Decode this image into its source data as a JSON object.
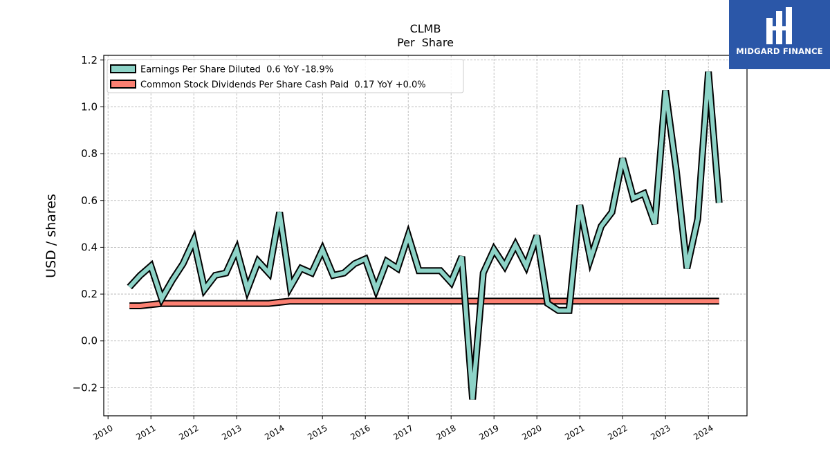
{
  "chart_data": {
    "type": "line",
    "title": "CLMB",
    "subtitle": "Per  Share",
    "xlabel": "",
    "ylabel": "USD / shares",
    "xlim": [
      2009.9,
      2024.9
    ],
    "ylim": [
      -0.32,
      1.22
    ],
    "yticks": [
      -0.2,
      0.0,
      0.2,
      0.4,
      0.6,
      0.8,
      1.0,
      1.2
    ],
    "ytick_labels": [
      "−0.2",
      "0.0",
      "0.2",
      "0.4",
      "0.6",
      "0.8",
      "1.0",
      "1.2"
    ],
    "xticks": [
      2010,
      2011,
      2012,
      2013,
      2014,
      2015,
      2016,
      2017,
      2018,
      2019,
      2020,
      2021,
      2022,
      2023,
      2024
    ],
    "xtick_labels": [
      "2010",
      "2011",
      "2012",
      "2013",
      "2014",
      "2015",
      "2016",
      "2017",
      "2018",
      "2019",
      "2020",
      "2021",
      "2022",
      "2023",
      "2024"
    ],
    "grid": true,
    "legend_position": "top-left",
    "series": [
      {
        "name": "Earnings Per Share Diluted  0.6 YoY -18.9%",
        "color": "#8dd3c7",
        "x": [
          2010.5,
          2010.75,
          2011.0,
          2011.25,
          2011.5,
          2011.75,
          2012.0,
          2012.25,
          2012.5,
          2012.75,
          2013.0,
          2013.25,
          2013.5,
          2013.75,
          2014.0,
          2014.25,
          2014.5,
          2014.75,
          2015.0,
          2015.25,
          2015.5,
          2015.75,
          2016.0,
          2016.25,
          2016.5,
          2016.75,
          2017.0,
          2017.25,
          2017.5,
          2017.75,
          2018.0,
          2018.25,
          2018.5,
          2018.75,
          2019.0,
          2019.25,
          2019.5,
          2019.75,
          2020.0,
          2020.25,
          2020.5,
          2020.75,
          2021.0,
          2021.25,
          2021.5,
          2021.75,
          2022.0,
          2022.25,
          2022.5,
          2022.75,
          2023.0,
          2023.25,
          2023.5,
          2023.75,
          2024.0,
          2024.25
        ],
        "values": [
          0.23,
          0.28,
          0.32,
          0.18,
          0.26,
          0.33,
          0.43,
          0.22,
          0.28,
          0.29,
          0.39,
          0.22,
          0.34,
          0.29,
          0.55,
          0.23,
          0.31,
          0.29,
          0.39,
          0.28,
          0.29,
          0.33,
          0.35,
          0.22,
          0.34,
          0.31,
          0.45,
          0.3,
          0.3,
          0.3,
          0.25,
          0.36,
          -0.25,
          0.29,
          0.39,
          0.32,
          0.41,
          0.32,
          0.45,
          0.16,
          0.13,
          0.13,
          0.58,
          0.35,
          0.49,
          0.55,
          0.78,
          0.61,
          0.63,
          0.5,
          1.07,
          0.73,
          0.31,
          0.52,
          1.15,
          0.59
        ]
      },
      {
        "name": "Common Stock Dividends Per Share Cash Paid  0.17 YoY +0.0%",
        "color": "#fb8072",
        "x": [
          2010.5,
          2010.75,
          2011.0,
          2011.25,
          2011.5,
          2011.75,
          2012.0,
          2012.25,
          2012.5,
          2012.75,
          2013.0,
          2013.25,
          2013.5,
          2013.75,
          2014.0,
          2014.25,
          2014.5,
          2014.75,
          2015.0,
          2015.25,
          2015.5,
          2015.75,
          2016.0,
          2016.25,
          2016.5,
          2016.75,
          2017.0,
          2017.25,
          2017.5,
          2017.75,
          2018.0,
          2018.25,
          2018.5,
          2018.75,
          2019.0,
          2019.25,
          2019.5,
          2019.75,
          2020.0,
          2020.25,
          2020.5,
          2020.75,
          2021.0,
          2021.25,
          2021.5,
          2021.75,
          2022.0,
          2022.25,
          2022.5,
          2022.75,
          2023.0,
          2023.25,
          2023.5,
          2023.75,
          2024.0,
          2024.25
        ],
        "values": [
          0.15,
          0.15,
          0.155,
          0.16,
          0.16,
          0.16,
          0.16,
          0.16,
          0.16,
          0.16,
          0.16,
          0.16,
          0.16,
          0.16,
          0.165,
          0.17,
          0.17,
          0.17,
          0.17,
          0.17,
          0.17,
          0.17,
          0.17,
          0.17,
          0.17,
          0.17,
          0.17,
          0.17,
          0.17,
          0.17,
          0.17,
          0.17,
          0.17,
          0.17,
          0.17,
          0.17,
          0.17,
          0.17,
          0.17,
          0.17,
          0.17,
          0.17,
          0.17,
          0.17,
          0.17,
          0.17,
          0.17,
          0.17,
          0.17,
          0.17,
          0.17,
          0.17,
          0.17,
          0.17,
          0.17,
          0.17
        ]
      }
    ]
  },
  "logo": {
    "text": "MIDGARD FINANCE",
    "background": "#2b57a8"
  }
}
